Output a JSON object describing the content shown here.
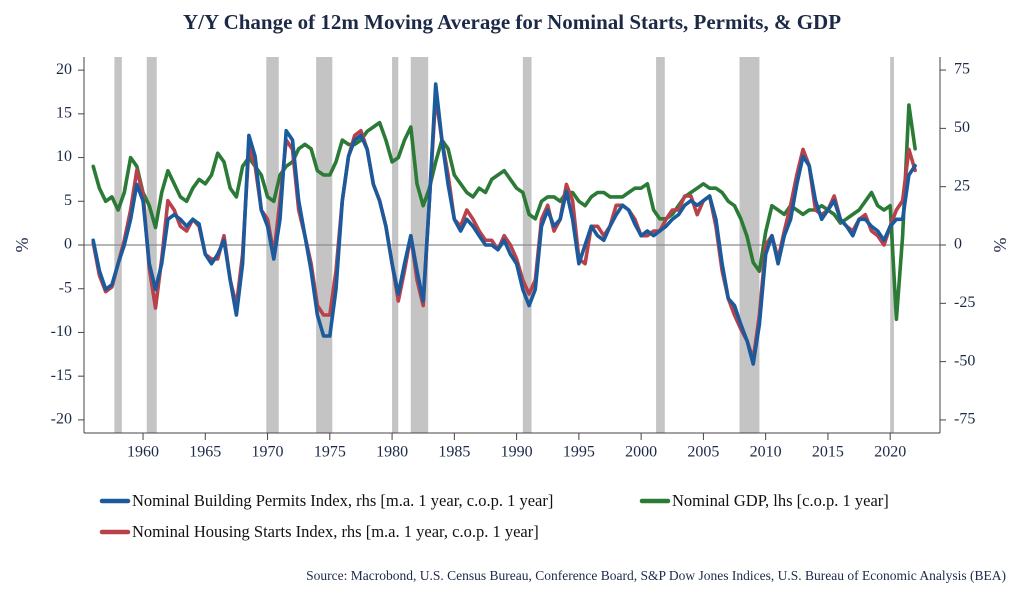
{
  "chart_data": {
    "type": "line",
    "title": "Y/Y Change of 12m Moving Average for Nominal Starts, Permits, & GDP",
    "y_label": "%",
    "y2_label": "%",
    "source": "Source: Macrobond, U.S. Census Bureau, Conference Board, S&P Dow Jones Indices, U.S. Bureau of Economic Analysis (BEA)",
    "xlim": [
      1955.26,
      2024.0
    ],
    "xticks": [
      1960,
      1965,
      1970,
      1975,
      1980,
      1985,
      1990,
      1995,
      2000,
      2005,
      2010,
      2015,
      2020
    ],
    "ylim": [
      -21.5,
      21.5
    ],
    "yticks": [
      20,
      15,
      10,
      5,
      0,
      -5,
      -10,
      -15,
      -20
    ],
    "y2lim": [
      -80.6,
      80.6
    ],
    "y2ticks": [
      75,
      50,
      25,
      0,
      -25,
      -50,
      -75
    ],
    "recessions": [
      [
        1957.7,
        1958.3
      ],
      [
        1960.3,
        1961.1
      ],
      [
        1969.9,
        1970.9
      ],
      [
        1973.9,
        1975.2
      ],
      [
        1980.0,
        1980.5
      ],
      [
        1981.5,
        1982.9
      ],
      [
        1990.5,
        1991.2
      ],
      [
        2001.2,
        2001.9
      ],
      [
        2007.9,
        2009.5
      ],
      [
        2020.0,
        2020.3
      ]
    ],
    "recession_color": "#c4c4c4",
    "x": [
      1956,
      1956.5,
      1957,
      1957.5,
      1958,
      1958.5,
      1959,
      1959.5,
      1960,
      1960.5,
      1961,
      1961.5,
      1962,
      1962.5,
      1963,
      1963.5,
      1964,
      1964.5,
      1965,
      1965.5,
      1966,
      1966.5,
      1967,
      1967.5,
      1968,
      1968.5,
      1969,
      1969.5,
      1970,
      1970.5,
      1971,
      1971.5,
      1972,
      1972.5,
      1973,
      1973.5,
      1974,
      1974.5,
      1975,
      1975.5,
      1976,
      1976.5,
      1977,
      1977.5,
      1978,
      1978.5,
      1979,
      1979.5,
      1980,
      1980.5,
      1981,
      1981.5,
      1982,
      1982.5,
      1983,
      1983.5,
      1984,
      1984.5,
      1985,
      1985.5,
      1986,
      1986.5,
      1987,
      1987.5,
      1988,
      1988.5,
      1989,
      1989.5,
      1990,
      1990.5,
      1991,
      1991.5,
      1992,
      1992.5,
      1993,
      1993.5,
      1994,
      1994.5,
      1995,
      1995.5,
      1996,
      1996.5,
      1997,
      1997.5,
      1998,
      1998.5,
      1999,
      1999.5,
      2000,
      2000.5,
      2001,
      2001.5,
      2002,
      2002.5,
      2003,
      2003.5,
      2004,
      2004.5,
      2005,
      2005.5,
      2006,
      2006.5,
      2007,
      2007.5,
      2008,
      2008.5,
      2009,
      2009.5,
      2010,
      2010.5,
      2011,
      2011.5,
      2012,
      2012.5,
      2013,
      2013.5,
      2014,
      2014.5,
      2015,
      2015.5,
      2016,
      2016.5,
      2017,
      2017.5,
      2018,
      2018.5,
      2019,
      2019.5,
      2020,
      2020.5,
      2021,
      2021.5,
      2022
    ],
    "series": [
      {
        "name": "Nominal Building Permits Index, rhs [m.a. 1 year, c.o.p. 1 year]",
        "color": "#1b5a9c",
        "axis": "y2",
        "values": [
          2,
          -11,
          -19,
          -17,
          -8,
          0,
          11,
          26,
          19,
          -8,
          -19,
          -8,
          11,
          13,
          11,
          8,
          11,
          9,
          -4,
          -8,
          -4,
          2,
          -15,
          -30,
          -8,
          47,
          38,
          15,
          8,
          -6,
          11,
          49,
          45,
          19,
          4,
          -11,
          -30,
          -39,
          -39,
          -19,
          19,
          38,
          45,
          47,
          41,
          26,
          19,
          8,
          -8,
          -21,
          -8,
          4,
          -11,
          -24,
          19,
          69,
          45,
          26,
          11,
          6,
          11,
          8,
          4,
          0,
          0,
          -2,
          2,
          -4,
          -8,
          -19,
          -26,
          -19,
          8,
          15,
          8,
          11,
          23,
          11,
          -8,
          0,
          8,
          4,
          2,
          8,
          13,
          17,
          15,
          9,
          4,
          6,
          4,
          6,
          8,
          11,
          13,
          17,
          19,
          17,
          19,
          21,
          11,
          -8,
          -23,
          -26,
          -34,
          -41,
          -51,
          -34,
          -4,
          4,
          -8,
          4,
          11,
          26,
          38,
          34,
          19,
          11,
          15,
          19,
          11,
          8,
          4,
          11,
          11,
          8,
          6,
          2,
          8,
          11,
          11,
          30,
          34
        ]
      },
      {
        "name": "Nominal GDP, lhs [c.o.p. 1 year]",
        "color": "#2b7a36",
        "values": [
          9,
          6.5,
          5,
          5.5,
          4,
          6,
          10,
          9,
          6,
          4.5,
          2,
          6,
          8.5,
          7,
          5.5,
          5,
          6.5,
          7.5,
          7,
          8,
          10.5,
          9.5,
          6.5,
          5.5,
          9,
          10,
          9,
          8,
          5.5,
          5,
          8,
          9,
          9.5,
          11,
          11.5,
          11,
          8.5,
          8,
          8,
          9.5,
          12,
          11.5,
          11.5,
          12,
          13,
          13.5,
          14,
          12,
          9.5,
          10,
          12,
          13.5,
          7,
          4.5,
          6.5,
          9.5,
          12,
          11,
          8,
          7,
          6,
          5.5,
          6.5,
          6,
          7.5,
          8,
          8.5,
          7.5,
          6.5,
          6,
          3.5,
          3,
          5,
          5.5,
          5.5,
          5,
          6,
          6,
          5,
          4.5,
          5.5,
          6,
          6,
          5.5,
          5.5,
          5.5,
          6,
          6.5,
          6.5,
          7,
          4,
          3,
          3,
          3.5,
          4.5,
          5.5,
          6,
          6.5,
          7,
          6.5,
          6.5,
          6,
          5,
          4.5,
          3,
          1,
          -2,
          -3,
          1.5,
          4.5,
          4,
          3.5,
          4.5,
          4,
          3.5,
          4,
          4,
          4.5,
          4,
          3.5,
          2.5,
          3,
          3.5,
          4,
          5,
          6,
          4.5,
          4,
          4.5,
          -8.5,
          1,
          16,
          11
        ]
      },
      {
        "name": "Nominal Housing Starts Index, rhs [m.a. 1 year, c.o.p. 1 year]",
        "color": "#b8414a",
        "axis": "y2",
        "values": [
          1,
          -13,
          -20,
          -18,
          -8,
          2,
          15,
          32,
          22,
          -10,
          -27,
          -6,
          19,
          15,
          8,
          6,
          11,
          8,
          -4,
          -6,
          -6,
          4,
          -15,
          -26,
          -4,
          42,
          34,
          15,
          11,
          -4,
          19,
          45,
          41,
          15,
          4,
          -8,
          -26,
          -30,
          -30,
          -11,
          19,
          38,
          47,
          49,
          41,
          26,
          19,
          8,
          -8,
          -24,
          -11,
          4,
          -15,
          -26,
          19,
          64,
          45,
          30,
          11,
          8,
          15,
          11,
          6,
          2,
          2,
          -2,
          4,
          0,
          -6,
          -15,
          -21,
          -15,
          11,
          17,
          6,
          11,
          26,
          19,
          -6,
          -8,
          8,
          8,
          4,
          8,
          17,
          17,
          15,
          11,
          4,
          4,
          6,
          6,
          11,
          15,
          15,
          21,
          21,
          13,
          19,
          21,
          8,
          -11,
          -23,
          -30,
          -36,
          -41,
          -49,
          -30,
          0,
          4,
          -6,
          6,
          17,
          30,
          41,
          34,
          15,
          13,
          15,
          21,
          11,
          8,
          6,
          11,
          13,
          6,
          4,
          0,
          8,
          15,
          19,
          41,
          32
        ]
      }
    ]
  }
}
